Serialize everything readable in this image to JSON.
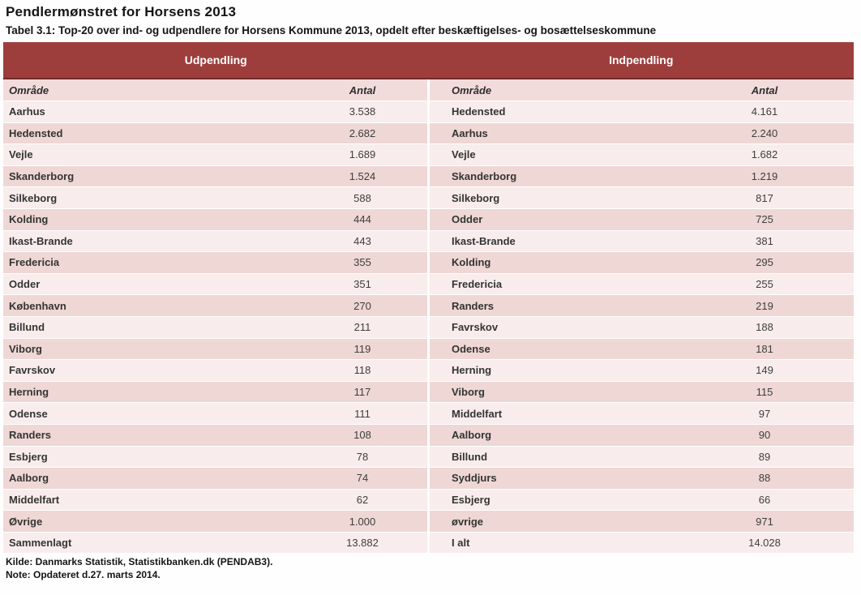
{
  "page": {
    "title": "Pendlermønstret for Horsens 2013",
    "subtitle": "Tabel 3.1: Top-20 over ind- og udpendlere for Horsens Kommune 2013, opdelt efter beskæftigelses- og bosættelseskommune",
    "source_note": "Kilde: Danmarks Statistik, Statistikbanken.dk (PENDAB3).",
    "update_note": "Note: Opdateret d.27. marts 2014."
  },
  "colors": {
    "band": "#9e3e3c",
    "band_border": "#6f2b2a",
    "colhead_bg": "#f2dcdb",
    "row_light": "#f8edec",
    "row_dark": "#eed7d5"
  },
  "table": {
    "left_header": "Udpendling",
    "right_header": "Indpendling",
    "col_area": "Område",
    "col_count": "Antal",
    "rows": [
      {
        "out_area": "Aarhus",
        "out_count": "3.538",
        "in_area": "Hedensted",
        "in_count": "4.161"
      },
      {
        "out_area": "Hedensted",
        "out_count": "2.682",
        "in_area": "Aarhus",
        "in_count": "2.240"
      },
      {
        "out_area": "Vejle",
        "out_count": "1.689",
        "in_area": "Vejle",
        "in_count": "1.682"
      },
      {
        "out_area": "Skanderborg",
        "out_count": "1.524",
        "in_area": "Skanderborg",
        "in_count": "1.219"
      },
      {
        "out_area": "Silkeborg",
        "out_count": "588",
        "in_area": "Silkeborg",
        "in_count": "817"
      },
      {
        "out_area": "Kolding",
        "out_count": "444",
        "in_area": "Odder",
        "in_count": "725"
      },
      {
        "out_area": "Ikast-Brande",
        "out_count": "443",
        "in_area": "Ikast-Brande",
        "in_count": "381"
      },
      {
        "out_area": "Fredericia",
        "out_count": "355",
        "in_area": "Kolding",
        "in_count": "295"
      },
      {
        "out_area": "Odder",
        "out_count": "351",
        "in_area": "Fredericia",
        "in_count": "255"
      },
      {
        "out_area": "København",
        "out_count": "270",
        "in_area": "Randers",
        "in_count": "219"
      },
      {
        "out_area": "Billund",
        "out_count": "211",
        "in_area": "Favrskov",
        "in_count": "188"
      },
      {
        "out_area": "Viborg",
        "out_count": "119",
        "in_area": "Odense",
        "in_count": "181"
      },
      {
        "out_area": "Favrskov",
        "out_count": "118",
        "in_area": "Herning",
        "in_count": "149"
      },
      {
        "out_area": "Herning",
        "out_count": "117",
        "in_area": "Viborg",
        "in_count": "115"
      },
      {
        "out_area": "Odense",
        "out_count": "111",
        "in_area": "Middelfart",
        "in_count": "97"
      },
      {
        "out_area": "Randers",
        "out_count": "108",
        "in_area": "Aalborg",
        "in_count": "90"
      },
      {
        "out_area": "Esbjerg",
        "out_count": "78",
        "in_area": "Billund",
        "in_count": "89"
      },
      {
        "out_area": "Aalborg",
        "out_count": "74",
        "in_area": "Syddjurs",
        "in_count": "88"
      },
      {
        "out_area": "Middelfart",
        "out_count": "62",
        "in_area": "Esbjerg",
        "in_count": "66"
      },
      {
        "out_area": "Øvrige",
        "out_count": "1.000",
        "in_area": "øvrige",
        "in_count": "971"
      },
      {
        "out_area": "Sammenlagt",
        "out_count": "13.882",
        "in_area": "I alt",
        "in_count": "14.028"
      }
    ]
  }
}
